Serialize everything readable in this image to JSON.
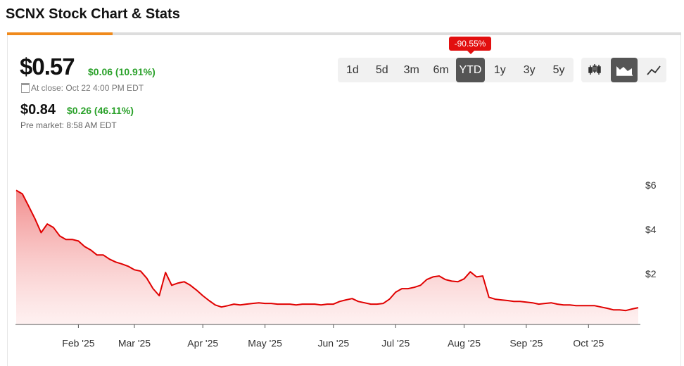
{
  "header": {
    "title": "SCNX Stock Chart & Stats"
  },
  "quote": {
    "price": "$0.57",
    "change": "$0.06 (10.91%)",
    "close_time": "At close: Oct 22 4:00 PM EDT"
  },
  "premarket": {
    "price": "$0.84",
    "change": "$0.26 (46.11%)",
    "time": "Pre market: 8:58 AM EDT"
  },
  "ranges": {
    "badge": "-90.55%",
    "active": 4,
    "items": [
      "1d",
      "5d",
      "3m",
      "6m",
      "YTD",
      "1y",
      "3y",
      "5y"
    ]
  },
  "chart_data": {
    "type": "area",
    "color": "#e00000",
    "categories": [
      null,
      null,
      null,
      null,
      null,
      null,
      null,
      null,
      null,
      null,
      "Feb '25",
      null,
      null,
      null,
      null,
      null,
      null,
      null,
      null,
      "Mar '25",
      null,
      null,
      null,
      null,
      null,
      null,
      null,
      null,
      null,
      null,
      "Apr '25",
      null,
      null,
      null,
      null,
      null,
      null,
      null,
      null,
      null,
      "May '25",
      null,
      null,
      null,
      null,
      null,
      null,
      null,
      null,
      null,
      null,
      "Jun '25",
      null,
      null,
      null,
      null,
      null,
      null,
      null,
      null,
      null,
      "Jul '25",
      null,
      null,
      null,
      null,
      null,
      null,
      null,
      null,
      null,
      null,
      "Aug '25",
      null,
      null,
      null,
      null,
      null,
      null,
      null,
      null,
      null,
      "Sep '25",
      null,
      null,
      null,
      null,
      null,
      null,
      null,
      null,
      null,
      "Oct '25",
      null,
      null,
      null,
      null,
      null,
      null,
      null,
      null
    ],
    "values": [
      5.81,
      5.65,
      5.1,
      4.54,
      3.9,
      4.29,
      4.13,
      3.75,
      3.59,
      3.59,
      3.52,
      3.27,
      3.11,
      2.89,
      2.89,
      2.7,
      2.57,
      2.48,
      2.38,
      2.22,
      2.16,
      1.84,
      1.37,
      1.05,
      2.1,
      1.52,
      1.62,
      1.68,
      1.52,
      1.3,
      1.05,
      0.83,
      0.63,
      0.54,
      0.6,
      0.67,
      0.63,
      0.67,
      0.7,
      0.73,
      0.7,
      0.7,
      0.67,
      0.67,
      0.67,
      0.63,
      0.67,
      0.67,
      0.67,
      0.63,
      0.67,
      0.67,
      0.79,
      0.86,
      0.92,
      0.79,
      0.73,
      0.67,
      0.67,
      0.7,
      0.89,
      1.21,
      1.37,
      1.37,
      1.43,
      1.52,
      1.78,
      1.9,
      1.94,
      1.78,
      1.71,
      1.68,
      1.81,
      2.13,
      1.9,
      1.94,
      0.98,
      0.89,
      0.86,
      0.83,
      0.79,
      0.79,
      0.76,
      0.73,
      0.67,
      0.7,
      0.73,
      0.67,
      0.63,
      0.63,
      0.6,
      0.6,
      0.6,
      0.6,
      0.54,
      0.48,
      0.41,
      0.41,
      0.38,
      0.45,
      0.51
    ],
    "ylim": [
      -0.25,
      7
    ],
    "yticks": [
      {
        "value": 2,
        "label": "$2"
      },
      {
        "value": 4,
        "label": "$4"
      },
      {
        "value": 6,
        "label": "$6"
      }
    ]
  }
}
